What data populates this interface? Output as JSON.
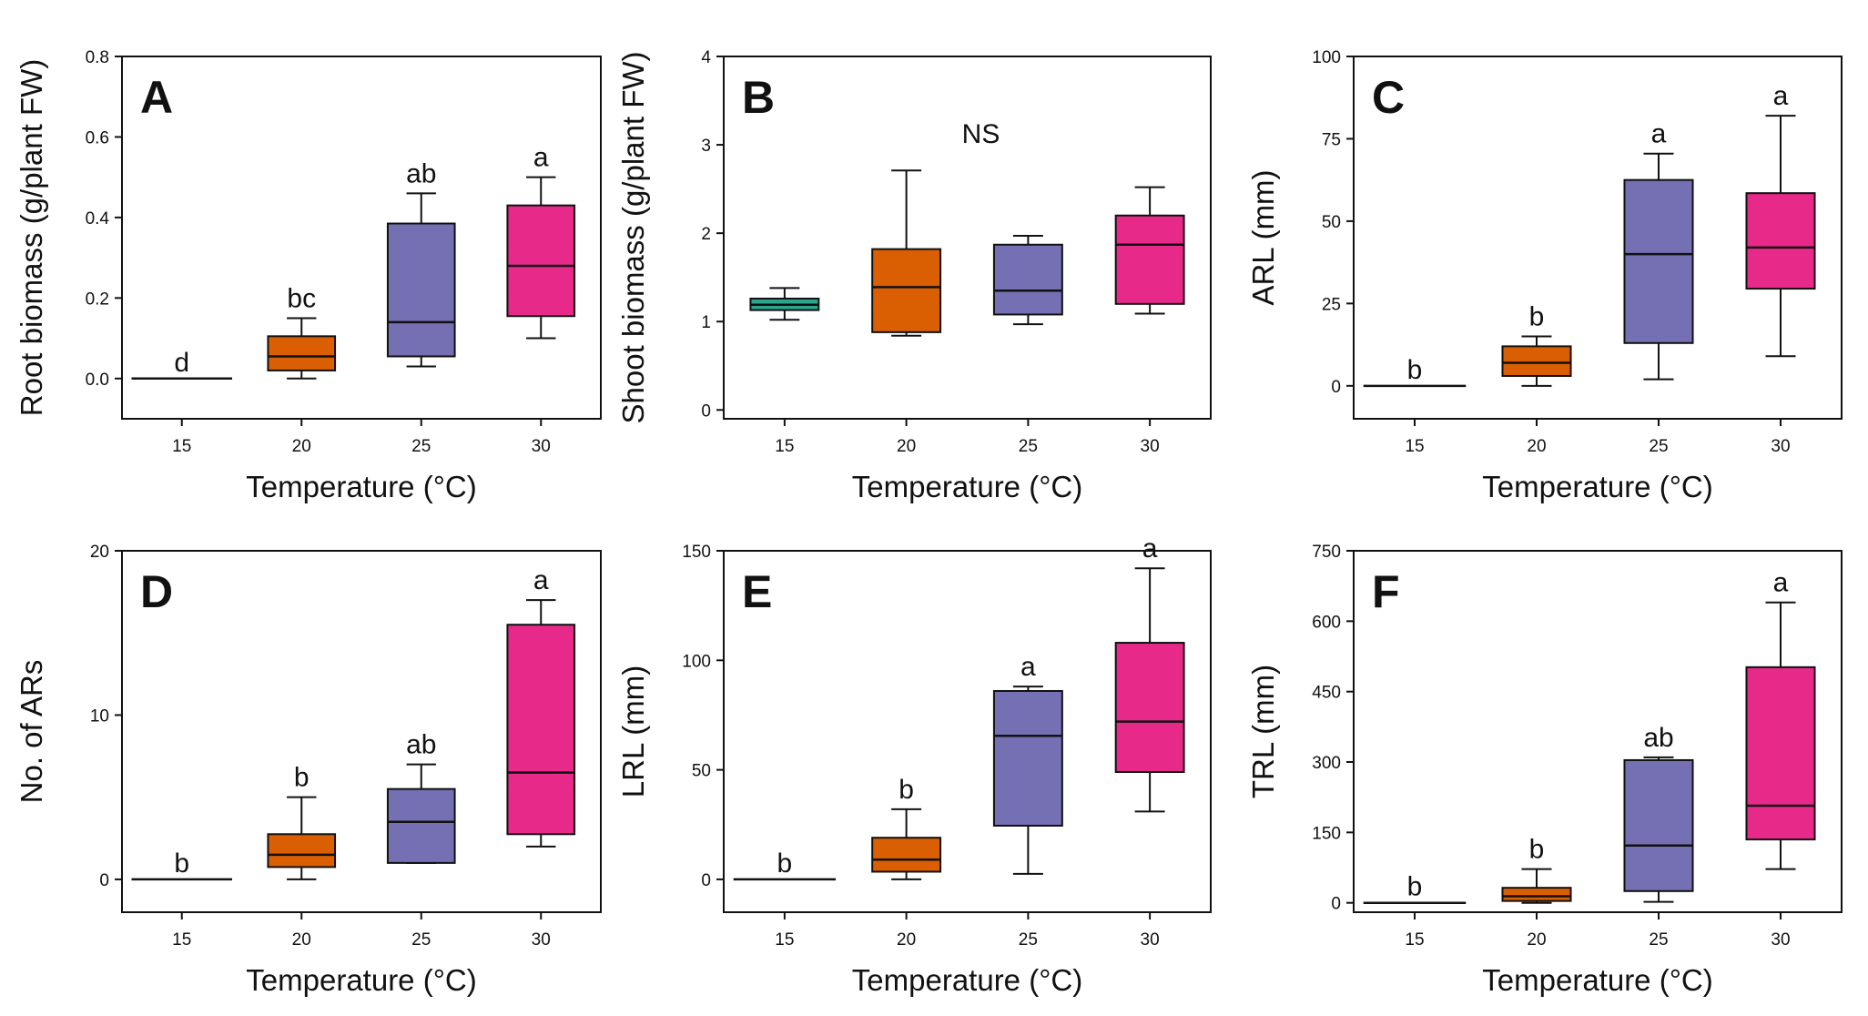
{
  "colors": {
    "15": "#2ca58d",
    "20": "#d95f02",
    "25": "#7570b3",
    "30": "#e7298a"
  },
  "chart_data": [
    {
      "type": "box",
      "panel": "A",
      "xlabel": "Temperature (°C)",
      "ylabel": "Root biomass (g/plant FW)",
      "categories": [
        "15",
        "20",
        "25",
        "30"
      ],
      "ylim": [
        -0.1,
        0.8
      ],
      "yticks": [
        0.0,
        0.2,
        0.4,
        0.6,
        0.8
      ],
      "ytick_labels": [
        "0.0",
        "0.2",
        "0.4",
        "0.6",
        "0.8"
      ],
      "annotation": "",
      "boxes": [
        {
          "min": 0.0,
          "q1": 0.0,
          "median": 0.0,
          "q3": 0.0,
          "max": 0.0,
          "label": "d"
        },
        {
          "min": 0.0,
          "q1": 0.02,
          "median": 0.055,
          "q3": 0.105,
          "max": 0.15,
          "label": "bc"
        },
        {
          "min": 0.03,
          "q1": 0.055,
          "median": 0.14,
          "q3": 0.385,
          "max": 0.46,
          "label": "ab"
        },
        {
          "min": 0.1,
          "q1": 0.155,
          "median": 0.28,
          "q3": 0.43,
          "max": 0.5,
          "label": "a"
        }
      ]
    },
    {
      "type": "box",
      "panel": "B",
      "xlabel": "Temperature (°C)",
      "ylabel": "Shoot biomass (g/plant FW)",
      "categories": [
        "15",
        "20",
        "25",
        "30"
      ],
      "ylim": [
        -0.1,
        4.0
      ],
      "yticks": [
        0,
        1,
        2,
        3,
        4
      ],
      "ytick_labels": [
        "0",
        "1",
        "2",
        "3",
        "4"
      ],
      "annotation": "NS",
      "boxes": [
        {
          "min": 1.02,
          "q1": 1.13,
          "median": 1.19,
          "q3": 1.26,
          "max": 1.38,
          "label": ""
        },
        {
          "min": 0.84,
          "q1": 0.88,
          "median": 1.39,
          "q3": 1.82,
          "max": 2.71,
          "label": ""
        },
        {
          "min": 0.97,
          "q1": 1.08,
          "median": 1.35,
          "q3": 1.87,
          "max": 1.97,
          "label": ""
        },
        {
          "min": 1.09,
          "q1": 1.2,
          "median": 1.87,
          "q3": 2.2,
          "max": 2.52,
          "label": ""
        }
      ]
    },
    {
      "type": "box",
      "panel": "C",
      "xlabel": "Temperature (°C)",
      "ylabel": "ARL (mm)",
      "categories": [
        "15",
        "20",
        "25",
        "30"
      ],
      "ylim": [
        -10,
        100
      ],
      "yticks": [
        0,
        25,
        50,
        75,
        100
      ],
      "ytick_labels": [
        "0",
        "25",
        "50",
        "75",
        "100"
      ],
      "annotation": "",
      "boxes": [
        {
          "min": 0,
          "q1": 0,
          "median": 0,
          "q3": 0,
          "max": 0,
          "label": "b"
        },
        {
          "min": 0,
          "q1": 3,
          "median": 7,
          "q3": 12,
          "max": 15,
          "label": "b"
        },
        {
          "min": 2,
          "q1": 13,
          "median": 40,
          "q3": 62.5,
          "max": 70.5,
          "label": "a"
        },
        {
          "min": 9,
          "q1": 29.5,
          "median": 42,
          "q3": 58.5,
          "max": 82,
          "label": "a"
        }
      ]
    },
    {
      "type": "box",
      "panel": "D",
      "xlabel": "Temperature (°C)",
      "ylabel": "No. of ARs",
      "categories": [
        "15",
        "20",
        "25",
        "30"
      ],
      "ylim": [
        -2,
        20
      ],
      "yticks": [
        0,
        10,
        20
      ],
      "ytick_labels": [
        "0",
        "10",
        "20"
      ],
      "annotation": "",
      "boxes": [
        {
          "min": 0,
          "q1": 0,
          "median": 0,
          "q3": 0,
          "max": 0,
          "label": "b"
        },
        {
          "min": 0,
          "q1": 0.75,
          "median": 1.5,
          "q3": 2.75,
          "max": 5,
          "label": "b"
        },
        {
          "min": 1,
          "q1": 1,
          "median": 3.5,
          "q3": 5.5,
          "max": 7,
          "label": "ab"
        },
        {
          "min": 2,
          "q1": 2.75,
          "median": 6.5,
          "q3": 15.5,
          "max": 17,
          "label": "a"
        }
      ]
    },
    {
      "type": "box",
      "panel": "E",
      "xlabel": "Temperature (°C)",
      "ylabel": "LRL (mm)",
      "categories": [
        "15",
        "20",
        "25",
        "30"
      ],
      "ylim": [
        -15,
        150
      ],
      "yticks": [
        0,
        50,
        100,
        150
      ],
      "ytick_labels": [
        "0",
        "50",
        "100",
        "150"
      ],
      "annotation": "",
      "boxes": [
        {
          "min": 0,
          "q1": 0,
          "median": 0,
          "q3": 0,
          "max": 0,
          "label": "b"
        },
        {
          "min": 0,
          "q1": 3.5,
          "median": 9,
          "q3": 19,
          "max": 32,
          "label": "b"
        },
        {
          "min": 2.5,
          "q1": 24.5,
          "median": 65.5,
          "q3": 86,
          "max": 88,
          "label": "a"
        },
        {
          "min": 31,
          "q1": 49,
          "median": 72,
          "q3": 108,
          "max": 142,
          "label": "a"
        }
      ]
    },
    {
      "type": "box",
      "panel": "F",
      "xlabel": "Temperature (°C)",
      "ylabel": "TRL (mm)",
      "categories": [
        "15",
        "20",
        "25",
        "30"
      ],
      "ylim": [
        -20,
        750
      ],
      "yticks": [
        0,
        150,
        300,
        450,
        600,
        750
      ],
      "ytick_labels": [
        "0",
        "150",
        "300",
        "450",
        "600",
        "750"
      ],
      "annotation": "",
      "boxes": [
        {
          "min": 0,
          "q1": 0,
          "median": 0,
          "q3": 0,
          "max": 0,
          "label": "b"
        },
        {
          "min": 0,
          "q1": 4,
          "median": 14,
          "q3": 32,
          "max": 72,
          "label": "b"
        },
        {
          "min": 2,
          "q1": 25,
          "median": 122,
          "q3": 304,
          "max": 310,
          "label": "ab"
        },
        {
          "min": 72,
          "q1": 135,
          "median": 207,
          "q3": 502,
          "max": 640,
          "label": "a"
        }
      ]
    }
  ]
}
